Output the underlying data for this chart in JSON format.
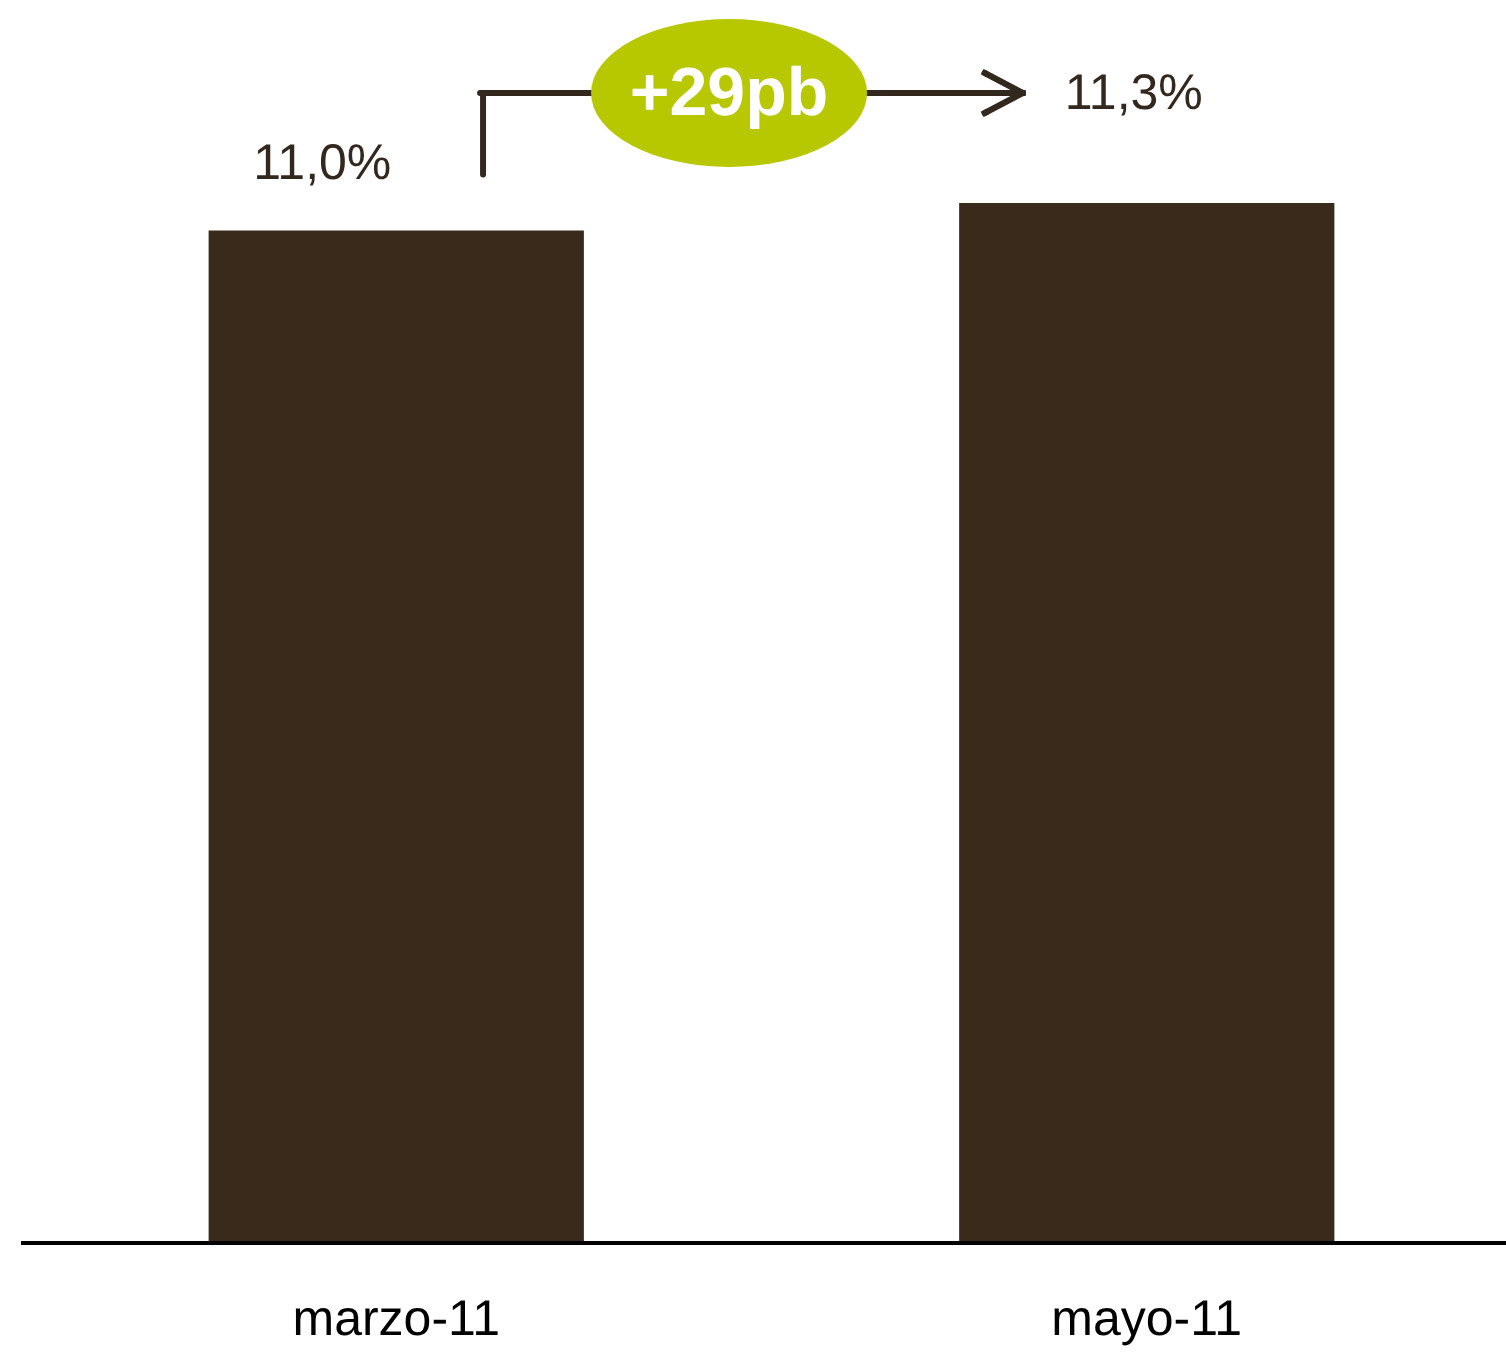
{
  "chart_data": {
    "type": "bar",
    "categories": [
      "marzo-11",
      "mayo-11"
    ],
    "values": [
      11.0,
      11.3
    ],
    "color": "#3a2a1c",
    "value_labels": [
      "11,0%",
      "11,3%"
    ],
    "tick_labels": "x",
    "annotations": [
      "+29pb"
    ]
  }
}
